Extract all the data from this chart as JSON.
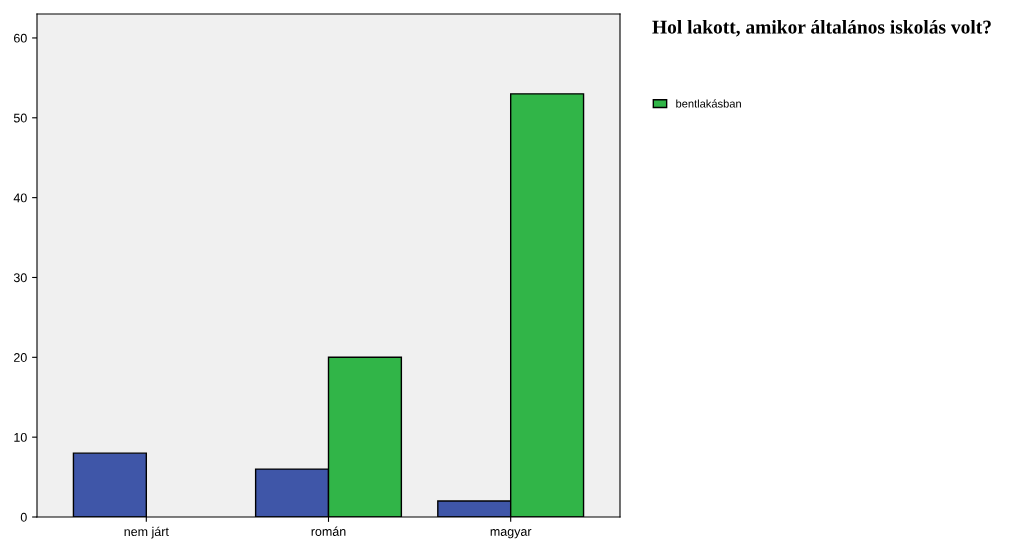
{
  "chart_data": {
    "type": "bar",
    "title": "Hol lakott, amikor általános iskolás volt?",
    "categories": [
      "nem járt",
      "román",
      "magyar"
    ],
    "series": [
      {
        "color": "#3f56a8",
        "values": [
          8,
          6,
          2
        ]
      },
      {
        "name": "bentlakásban",
        "color": "#31b548",
        "values": [
          null,
          20,
          53
        ]
      }
    ],
    "ylim": [
      0,
      63
    ],
    "yticks": [
      0,
      10,
      20,
      30,
      40,
      50,
      60
    ],
    "grid": false,
    "legend": "right"
  }
}
